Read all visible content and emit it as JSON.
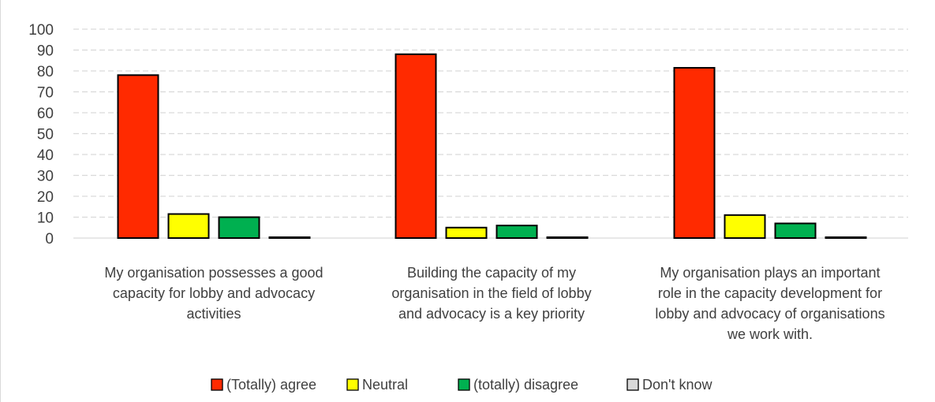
{
  "chart_data": {
    "type": "bar",
    "categories": [
      "My organisation possesses a good capacity for lobby and advocacy activities",
      "Building the capacity of my organisation in the field of lobby and advocacy is a key priority",
      "My organisation plays an important role in the capacity development for lobby and advocacy of organisations we work with."
    ],
    "category_lines": [
      [
        "My organisation possesses a good",
        "capacity for lobby and advocacy",
        "activities"
      ],
      [
        "Building the capacity of my",
        "organisation in the field of lobby",
        "and advocacy is a key priority"
      ],
      [
        "My organisation plays an important",
        "role in the capacity development for",
        "lobby and advocacy of organisations",
        "we work with."
      ]
    ],
    "series": [
      {
        "name": "(Totally) agree",
        "color": "#ff2a00",
        "values": [
          78,
          88,
          81.5
        ]
      },
      {
        "name": "Neutral",
        "color": "#ffff00",
        "values": [
          11.5,
          5,
          11
        ]
      },
      {
        "name": "(totally) disagree",
        "color": "#00b050",
        "values": [
          10,
          6,
          7
        ]
      },
      {
        "name": "Don't know",
        "color": "#d9d9d9",
        "values": [
          0.4,
          0.4,
          0.4
        ]
      }
    ],
    "ylim": [
      0,
      100
    ],
    "yticks": [
      0,
      10,
      20,
      30,
      40,
      50,
      60,
      70,
      80,
      90,
      100
    ],
    "grid": true,
    "legend_position": "bottom",
    "title": "",
    "xlabel": "",
    "ylabel": ""
  }
}
